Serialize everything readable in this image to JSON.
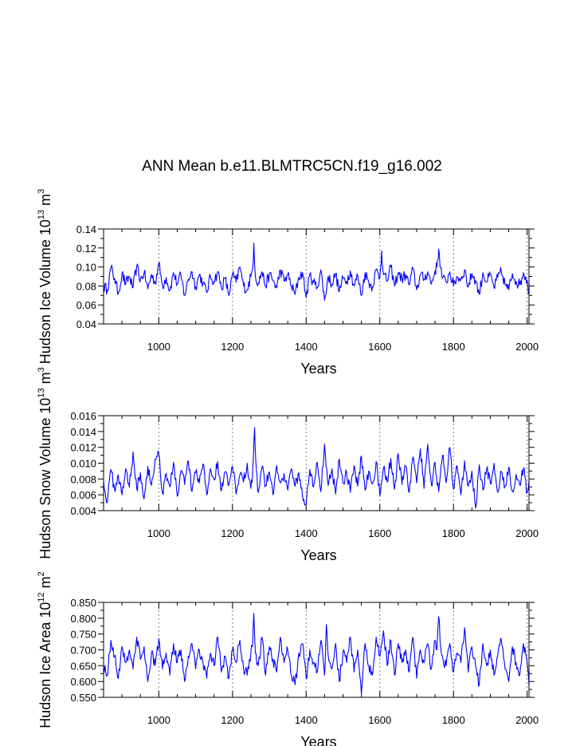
{
  "title": "ANN Mean b.e11.BLMTRC5CN.f19_g16.002",
  "colors": {
    "series": "#0000ff",
    "axis": "#000000",
    "grid": "#808080"
  },
  "chart_data": [
    {
      "type": "line",
      "title": "",
      "xlabel": "Years",
      "ylabel_parts": [
        "Hudson Ice Volume 10",
        "13",
        " m",
        "3"
      ],
      "xlim": [
        850,
        2005
      ],
      "ylim": [
        0.04,
        0.14
      ],
      "xticks": [
        1000,
        1200,
        1400,
        1600,
        1800,
        2000
      ],
      "xtick_labels": [
        "1000",
        "1200",
        "1400",
        "1600",
        "1800",
        "2000"
      ],
      "yticks": [
        0.04,
        0.06,
        0.08,
        0.1,
        0.12,
        0.14
      ],
      "ytick_labels": [
        "0.04",
        "0.06",
        "0.08",
        "0.10",
        "0.12",
        "0.14"
      ],
      "grid": "vertical dashed at x ticks",
      "series": [
        {
          "name": "Hudson Ice Volume",
          "x": [
            850,
            860,
            870,
            880,
            890,
            900,
            910,
            920,
            930,
            940,
            950,
            960,
            970,
            980,
            990,
            1000,
            1010,
            1020,
            1030,
            1040,
            1050,
            1060,
            1070,
            1080,
            1090,
            1100,
            1110,
            1120,
            1130,
            1140,
            1150,
            1160,
            1170,
            1180,
            1190,
            1200,
            1210,
            1220,
            1230,
            1240,
            1250,
            1255,
            1258,
            1262,
            1270,
            1280,
            1290,
            1300,
            1310,
            1320,
            1330,
            1340,
            1350,
            1360,
            1370,
            1380,
            1390,
            1400,
            1410,
            1420,
            1430,
            1440,
            1450,
            1460,
            1470,
            1480,
            1490,
            1500,
            1510,
            1520,
            1530,
            1540,
            1550,
            1560,
            1570,
            1580,
            1590,
            1600,
            1605,
            1610,
            1620,
            1630,
            1640,
            1650,
            1660,
            1670,
            1680,
            1690,
            1700,
            1710,
            1720,
            1730,
            1740,
            1750,
            1755,
            1760,
            1765,
            1770,
            1780,
            1790,
            1800,
            1810,
            1820,
            1830,
            1840,
            1850,
            1860,
            1870,
            1880,
            1890,
            1900,
            1910,
            1920,
            1930,
            1940,
            1950,
            1960,
            1970,
            1980,
            1990,
            2000,
            2005
          ],
          "values": [
            0.08,
            0.076,
            0.099,
            0.088,
            0.072,
            0.093,
            0.082,
            0.09,
            0.078,
            0.101,
            0.086,
            0.094,
            0.077,
            0.092,
            0.083,
            0.104,
            0.08,
            0.089,
            0.075,
            0.094,
            0.082,
            0.091,
            0.07,
            0.087,
            0.095,
            0.079,
            0.092,
            0.083,
            0.073,
            0.09,
            0.085,
            0.095,
            0.078,
            0.088,
            0.07,
            0.092,
            0.084,
            0.1,
            0.08,
            0.076,
            0.09,
            0.098,
            0.125,
            0.09,
            0.083,
            0.095,
            0.08,
            0.092,
            0.086,
            0.078,
            0.097,
            0.085,
            0.092,
            0.08,
            0.071,
            0.089,
            0.094,
            0.068,
            0.092,
            0.084,
            0.078,
            0.097,
            0.065,
            0.09,
            0.082,
            0.093,
            0.074,
            0.088,
            0.085,
            0.096,
            0.08,
            0.091,
            0.07,
            0.094,
            0.084,
            0.079,
            0.097,
            0.089,
            0.117,
            0.092,
            0.085,
            0.1,
            0.08,
            0.094,
            0.087,
            0.092,
            0.081,
            0.098,
            0.076,
            0.092,
            0.087,
            0.095,
            0.082,
            0.096,
            0.1,
            0.119,
            0.099,
            0.088,
            0.084,
            0.095,
            0.08,
            0.09,
            0.087,
            0.097,
            0.079,
            0.093,
            0.086,
            0.071,
            0.094,
            0.084,
            0.092,
            0.078,
            0.089,
            0.095,
            0.082,
            0.076,
            0.093,
            0.085,
            0.081,
            0.094,
            0.086,
            0.072
          ]
        }
      ]
    },
    {
      "type": "line",
      "title": "",
      "xlabel": "Years",
      "ylabel_parts": [
        "Hudson Snow Volume 10",
        "13",
        " m",
        "3"
      ],
      "xlim": [
        850,
        2005
      ],
      "ylim": [
        0.004,
        0.016
      ],
      "xticks": [
        1000,
        1200,
        1400,
        1600,
        1800,
        2000
      ],
      "xtick_labels": [
        "1000",
        "1200",
        "1400",
        "1600",
        "1800",
        "2000"
      ],
      "yticks": [
        0.004,
        0.006,
        0.008,
        0.01,
        0.012,
        0.014,
        0.016
      ],
      "ytick_labels": [
        "0.004",
        "0.006",
        "0.008",
        "0.010",
        "0.012",
        "0.014",
        "0.016"
      ],
      "grid": "vertical dashed at x ticks",
      "series": [
        {
          "name": "Hudson Snow Volume",
          "x": [
            850,
            860,
            870,
            880,
            890,
            900,
            910,
            920,
            930,
            940,
            950,
            960,
            970,
            980,
            990,
            1000,
            1010,
            1020,
            1030,
            1040,
            1050,
            1060,
            1070,
            1080,
            1090,
            1100,
            1110,
            1120,
            1130,
            1140,
            1150,
            1160,
            1170,
            1180,
            1190,
            1200,
            1210,
            1220,
            1230,
            1240,
            1250,
            1255,
            1260,
            1265,
            1270,
            1280,
            1290,
            1300,
            1310,
            1320,
            1330,
            1340,
            1350,
            1360,
            1370,
            1380,
            1390,
            1400,
            1410,
            1420,
            1430,
            1440,
            1450,
            1460,
            1470,
            1480,
            1490,
            1500,
            1510,
            1520,
            1530,
            1540,
            1550,
            1560,
            1570,
            1580,
            1590,
            1600,
            1610,
            1620,
            1630,
            1640,
            1650,
            1660,
            1670,
            1680,
            1690,
            1700,
            1710,
            1720,
            1730,
            1740,
            1750,
            1760,
            1770,
            1780,
            1790,
            1800,
            1810,
            1820,
            1830,
            1840,
            1850,
            1860,
            1870,
            1880,
            1890,
            1900,
            1910,
            1920,
            1930,
            1940,
            1950,
            1960,
            1970,
            1980,
            1990,
            2000,
            2005
          ],
          "values": [
            0.0078,
            0.005,
            0.0092,
            0.0066,
            0.0085,
            0.006,
            0.0093,
            0.007,
            0.0114,
            0.0068,
            0.0088,
            0.0055,
            0.0096,
            0.0072,
            0.0105,
            0.0112,
            0.0062,
            0.0087,
            0.007,
            0.0101,
            0.0058,
            0.009,
            0.0073,
            0.0103,
            0.0064,
            0.0088,
            0.0075,
            0.0099,
            0.006,
            0.0093,
            0.0079,
            0.0102,
            0.0065,
            0.0089,
            0.0072,
            0.0096,
            0.0061,
            0.0085,
            0.0076,
            0.01,
            0.0068,
            0.009,
            0.0145,
            0.009,
            0.0063,
            0.0095,
            0.0072,
            0.0089,
            0.006,
            0.0097,
            0.0075,
            0.0087,
            0.0066,
            0.0093,
            0.0071,
            0.0088,
            0.0059,
            0.0048,
            0.0092,
            0.007,
            0.0101,
            0.0064,
            0.0124,
            0.0072,
            0.0093,
            0.0061,
            0.0105,
            0.0075,
            0.0088,
            0.0063,
            0.0097,
            0.0071,
            0.0109,
            0.0066,
            0.009,
            0.0074,
            0.0102,
            0.0059,
            0.0094,
            0.0076,
            0.0106,
            0.0067,
            0.0112,
            0.0073,
            0.0096,
            0.0063,
            0.0108,
            0.0075,
            0.0118,
            0.0068,
            0.0124,
            0.0072,
            0.0101,
            0.0064,
            0.011,
            0.0075,
            0.012,
            0.0067,
            0.0096,
            0.006,
            0.0103,
            0.0071,
            0.009,
            0.0043,
            0.0098,
            0.0066,
            0.0092,
            0.0074,
            0.01,
            0.0063,
            0.0089,
            0.0071,
            0.0095,
            0.0065,
            0.0086,
            0.0072,
            0.0093,
            0.0063,
            0.0078
          ]
        }
      ]
    },
    {
      "type": "line",
      "title": "",
      "xlabel": "Years",
      "ylabel_parts": [
        "Hudson Ice Area 10",
        "12",
        " m",
        "2"
      ],
      "xlim": [
        850,
        2005
      ],
      "ylim": [
        0.55,
        0.85
      ],
      "xticks": [
        1000,
        1200,
        1400,
        1600,
        1800,
        2000
      ],
      "xtick_labels": [
        "1000",
        "1200",
        "1400",
        "1600",
        "1800",
        "2000"
      ],
      "yticks": [
        0.55,
        0.6,
        0.65,
        0.7,
        0.75,
        0.8,
        0.85
      ],
      "ytick_labels": [
        "0.550",
        "0.600",
        "0.650",
        "0.700",
        "0.750",
        "0.800",
        "0.850"
      ],
      "grid": "vertical dashed at x ticks",
      "series": [
        {
          "name": "Hudson Ice Area",
          "x": [
            850,
            860,
            870,
            880,
            890,
            900,
            910,
            920,
            930,
            940,
            950,
            960,
            970,
            980,
            990,
            1000,
            1010,
            1020,
            1030,
            1040,
            1050,
            1060,
            1070,
            1080,
            1090,
            1100,
            1110,
            1120,
            1130,
            1140,
            1150,
            1160,
            1170,
            1180,
            1190,
            1200,
            1210,
            1220,
            1230,
            1240,
            1250,
            1255,
            1258,
            1262,
            1270,
            1280,
            1290,
            1300,
            1310,
            1320,
            1330,
            1340,
            1350,
            1360,
            1370,
            1380,
            1390,
            1400,
            1410,
            1420,
            1430,
            1440,
            1450,
            1455,
            1460,
            1470,
            1480,
            1490,
            1500,
            1510,
            1520,
            1530,
            1540,
            1550,
            1560,
            1570,
            1580,
            1590,
            1600,
            1610,
            1620,
            1630,
            1640,
            1650,
            1660,
            1670,
            1680,
            1690,
            1700,
            1710,
            1720,
            1730,
            1740,
            1750,
            1755,
            1760,
            1765,
            1770,
            1780,
            1790,
            1800,
            1810,
            1820,
            1830,
            1840,
            1850,
            1860,
            1870,
            1880,
            1890,
            1900,
            1910,
            1920,
            1930,
            1940,
            1950,
            1960,
            1970,
            1980,
            1990,
            2000,
            2005
          ],
          "values": [
            0.65,
            0.62,
            0.73,
            0.68,
            0.61,
            0.71,
            0.66,
            0.7,
            0.64,
            0.74,
            0.67,
            0.71,
            0.6,
            0.69,
            0.65,
            0.735,
            0.64,
            0.69,
            0.62,
            0.72,
            0.66,
            0.7,
            0.6,
            0.68,
            0.72,
            0.64,
            0.7,
            0.66,
            0.61,
            0.69,
            0.65,
            0.74,
            0.63,
            0.68,
            0.61,
            0.7,
            0.66,
            0.73,
            0.64,
            0.62,
            0.69,
            0.72,
            0.815,
            0.69,
            0.65,
            0.74,
            0.62,
            0.71,
            0.67,
            0.63,
            0.74,
            0.66,
            0.7,
            0.62,
            0.59,
            0.69,
            0.72,
            0.61,
            0.7,
            0.66,
            0.63,
            0.73,
            0.62,
            0.78,
            0.68,
            0.64,
            0.72,
            0.6,
            0.69,
            0.66,
            0.74,
            0.63,
            0.7,
            0.56,
            0.72,
            0.65,
            0.62,
            0.74,
            0.68,
            0.76,
            0.65,
            0.73,
            0.62,
            0.72,
            0.66,
            0.7,
            0.63,
            0.74,
            0.61,
            0.7,
            0.66,
            0.72,
            0.64,
            0.73,
            0.7,
            0.805,
            0.71,
            0.68,
            0.65,
            0.72,
            0.63,
            0.69,
            0.66,
            0.77,
            0.63,
            0.71,
            0.65,
            0.59,
            0.72,
            0.65,
            0.7,
            0.62,
            0.68,
            0.73,
            0.64,
            0.6,
            0.71,
            0.66,
            0.62,
            0.72,
            0.66,
            0.59
          ]
        }
      ]
    }
  ]
}
